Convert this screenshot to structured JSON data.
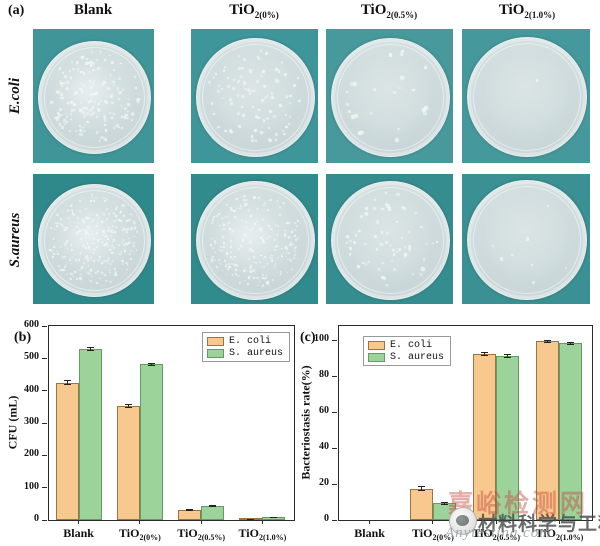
{
  "panel_a": {
    "tag": "(a)",
    "column_headers": [
      {
        "base": "Blank",
        "sub": ""
      },
      {
        "base": "TiO",
        "sub": "2(0%)"
      },
      {
        "base": "TiO",
        "sub": "2(0.5%)"
      },
      {
        "base": "TiO",
        "sub": "2(1.0%)"
      }
    ],
    "row_labels": [
      "E.coli",
      "S.aureus"
    ],
    "photo_background_teal": "#3a9093",
    "dishes": [
      {
        "row": "E.coli",
        "column": "Blank",
        "colony_count": 170,
        "dot_size": 2.4,
        "haze": true,
        "seed": 11
      },
      {
        "row": "E.coli",
        "column": "TiO2(0%)",
        "colony_count": 95,
        "dot_size": 2.6,
        "haze": false,
        "seed": 22
      },
      {
        "row": "E.coli",
        "column": "TiO2(0.5%)",
        "colony_count": 26,
        "dot_size": 3.2,
        "haze": false,
        "seed": 33
      },
      {
        "row": "E.coli",
        "column": "TiO2(1.0%)",
        "colony_count": 1,
        "dot_size": 3.4,
        "haze": false,
        "seed": 44
      },
      {
        "row": "S.aureus",
        "column": "Blank",
        "colony_count": 260,
        "dot_size": 1.8,
        "haze": true,
        "seed": 55
      },
      {
        "row": "S.aureus",
        "column": "TiO2(0%)",
        "colony_count": 230,
        "dot_size": 1.8,
        "haze": true,
        "seed": 66
      },
      {
        "row": "S.aureus",
        "column": "TiO2(0.5%)",
        "colony_count": 65,
        "dot_size": 2.6,
        "haze": false,
        "seed": 77
      },
      {
        "row": "S.aureus",
        "column": "TiO2(1.0%)",
        "colony_count": 8,
        "dot_size": 2.8,
        "haze": false,
        "seed": 88
      }
    ]
  },
  "chart_data": [
    {
      "id": "b",
      "panel_tag": "(b)",
      "type": "bar",
      "categories": [
        "Blank",
        "TiO2(0%)",
        "TiO2(0.5%)",
        "TiO2(1.0%)"
      ],
      "categories_rich": [
        {
          "base": "Blank",
          "sub": ""
        },
        {
          "base": "TiO",
          "sub": "2(0%)"
        },
        {
          "base": "TiO",
          "sub": "2(0.5%)"
        },
        {
          "base": "TiO",
          "sub": "2(1.0%)"
        }
      ],
      "series": [
        {
          "name": "E. coli",
          "color": "#F8C98E",
          "edge": "#9b7440",
          "values": [
            425,
            353,
            32,
            2
          ],
          "errors": [
            5,
            4,
            2,
            1
          ]
        },
        {
          "name": "S. aureus",
          "color": "#9BD39B",
          "edge": "#649c66",
          "values": [
            528,
            482,
            44,
            8
          ],
          "errors": [
            4,
            3,
            2,
            1
          ]
        }
      ],
      "ylabel": "CFU (mL)",
      "xlabel": "",
      "ylim": [
        0,
        600
      ],
      "yticks": [
        0,
        100,
        200,
        300,
        400,
        500,
        600
      ],
      "legend_position": "top-right",
      "grid": false
    },
    {
      "id": "c",
      "panel_tag": "(c)",
      "type": "bar",
      "categories": [
        "Blank",
        "TiO2(0%)",
        "TiO2(0.5%)",
        "TiO2(1.0%)"
      ],
      "categories_rich": [
        {
          "base": "Blank",
          "sub": ""
        },
        {
          "base": "TiO",
          "sub": "2(0%)"
        },
        {
          "base": "TiO",
          "sub": "2(0.5%)"
        },
        {
          "base": "TiO",
          "sub": "2(1.0%)"
        }
      ],
      "series": [
        {
          "name": "E. coli",
          "color": "#F8C98E",
          "edge": "#9b7440",
          "values": [
            0,
            17.5,
            92.4,
            99.4
          ],
          "errors": [
            0,
            1.2,
            1.0,
            0.8
          ]
        },
        {
          "name": "S. aureus",
          "color": "#9BD39B",
          "edge": "#649c66",
          "values": [
            0,
            9.2,
            91.2,
            98.4
          ],
          "errors": [
            0,
            0.5,
            0.8,
            0.6
          ]
        }
      ],
      "ylabel": "Bacteriostasis rate(%)",
      "xlabel": "",
      "ylim": [
        0,
        108
      ],
      "yticks": [
        0,
        20,
        40,
        60,
        80,
        100
      ],
      "legend_position": "top-left",
      "grid": false
    }
  ],
  "watermark": {
    "line1": "嘉峪检测网",
    "line2": "材料科学与工程",
    "line3": "Anytesting.com"
  }
}
